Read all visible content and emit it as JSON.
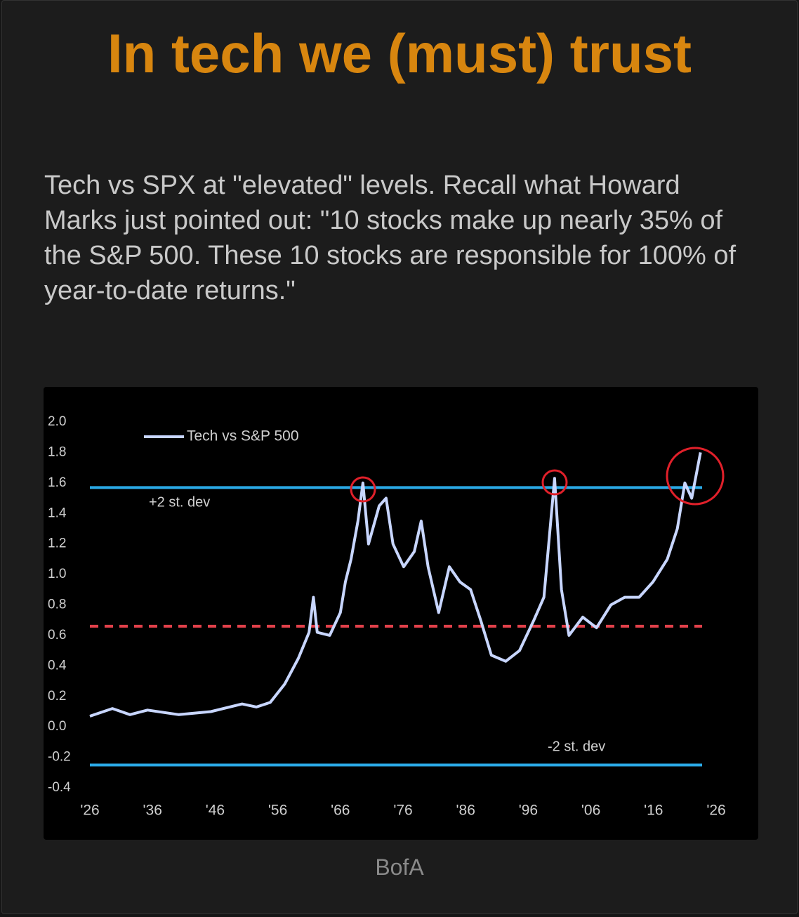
{
  "title": "In tech we (must) trust",
  "body": "Tech vs SPX at \"elevated\" levels. Recall what Howard Marks just pointed out: \"10 stocks make up nearly 35% of the S&P 500. These 10 stocks are responsible for 100% of year-to-date returns.\"",
  "source": "BofA",
  "chart_data": {
    "type": "line",
    "series": [
      {
        "name": "Tech vs S&P 500",
        "color": "#c8d6ff",
        "x": [
          1926,
          1929.6,
          1932.4,
          1935.2,
          1940.2,
          1945.3,
          1950.3,
          1952.6,
          1954.8,
          1957.1,
          1959.3,
          1961,
          1961.7,
          1962.3,
          1964.3,
          1966,
          1966.8,
          1967.7,
          1968.8,
          1969.6,
          1970.5,
          1972.2,
          1973.3,
          1974.4,
          1976.1,
          1977.8,
          1978.9,
          1980,
          1981.7,
          1983.4,
          1985.1,
          1986.8,
          1988.4,
          1990.1,
          1992.4,
          1994.6,
          1996.9,
          1998.5,
          2000.2,
          2001.3,
          2002.5,
          2004.7,
          2006.9,
          2009.2,
          2011.4,
          2013.7,
          2015.9,
          2018.2,
          2019.8,
          2021,
          2022.1,
          2023.5
        ],
        "values": [
          0.07,
          0.12,
          0.08,
          0.11,
          0.08,
          0.1,
          0.15,
          0.13,
          0.16,
          0.28,
          0.45,
          0.62,
          0.85,
          0.62,
          0.6,
          0.75,
          0.95,
          1.1,
          1.35,
          1.6,
          1.2,
          1.45,
          1.5,
          1.2,
          1.05,
          1.15,
          1.35,
          1.05,
          0.75,
          1.05,
          0.95,
          0.9,
          0.7,
          0.47,
          0.43,
          0.5,
          0.7,
          0.85,
          1.63,
          0.9,
          0.6,
          0.72,
          0.65,
          0.8,
          0.85,
          0.85,
          0.95,
          1.1,
          1.3,
          1.6,
          1.5,
          1.8
        ]
      }
    ],
    "reference_lines": [
      {
        "value": 1.57,
        "label": "+2 st. dev",
        "color": "#2aa9e6",
        "style": "solid"
      },
      {
        "value": 0.66,
        "color": "#e0404a",
        "style": "dashed"
      },
      {
        "value": -0.25,
        "label": "-2 st. dev",
        "color": "#2aa9e6",
        "style": "solid"
      }
    ],
    "xlim": [
      1926,
      2026
    ],
    "xticks": [
      {
        "value": 1926,
        "label": "'26"
      },
      {
        "value": 1936,
        "label": "'36"
      },
      {
        "value": 1946,
        "label": "'46"
      },
      {
        "value": 1956,
        "label": "'56"
      },
      {
        "value": 1966,
        "label": "'66"
      },
      {
        "value": 1976,
        "label": "'76"
      },
      {
        "value": 1986,
        "label": "'86"
      },
      {
        "value": 1996,
        "label": "'96"
      },
      {
        "value": 2006,
        "label": "'06"
      },
      {
        "value": 2016,
        "label": "'16"
      },
      {
        "value": 2026,
        "label": "'26"
      }
    ],
    "ylim": [
      -0.4,
      2.0
    ],
    "yticks": [
      -0.4,
      -0.2,
      {
        "value": 0,
        "label": "0.0"
      },
      0.2,
      0.4,
      0.6,
      0.8,
      {
        "value": 1,
        "label": "1.0"
      },
      1.2,
      1.4,
      1.6,
      1.8,
      {
        "value": 2,
        "label": "2.0"
      }
    ],
    "legend": "upper left"
  }
}
